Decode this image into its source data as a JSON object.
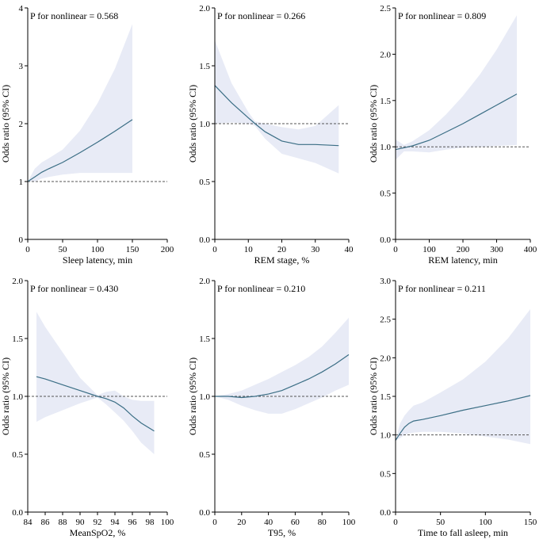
{
  "chart_data": [
    {
      "type": "line",
      "annotation": "P for nonlinear = 0.568",
      "xlabel": "Sleep latency, min",
      "ylabel": "Odds ratio (95% CI)",
      "xlim": [
        0,
        200
      ],
      "ylim": [
        0,
        4
      ],
      "xticks": [
        0,
        50,
        100,
        150,
        200
      ],
      "yticks": [
        0,
        1,
        2,
        3,
        4
      ],
      "ytick_labels": [
        "0",
        "1",
        "2",
        "3",
        "4"
      ],
      "reference": 1,
      "series": [
        {
          "name": "Odds ratio",
          "x": [
            0,
            10,
            20,
            30,
            50,
            75,
            100,
            125,
            150
          ],
          "y": [
            1.0,
            1.08,
            1.16,
            1.22,
            1.33,
            1.5,
            1.68,
            1.87,
            2.07
          ]
        },
        {
          "name": "95% CI upper",
          "x": [
            0,
            10,
            20,
            30,
            50,
            75,
            100,
            125,
            150
          ],
          "y": [
            1.0,
            1.22,
            1.33,
            1.4,
            1.55,
            1.88,
            2.35,
            2.95,
            3.72
          ]
        },
        {
          "name": "95% CI lower",
          "x": [
            0,
            10,
            20,
            30,
            50,
            75,
            100,
            125,
            150
          ],
          "y": [
            1.0,
            1.0,
            1.05,
            1.08,
            1.12,
            1.15,
            1.15,
            1.15,
            1.15
          ]
        }
      ]
    },
    {
      "type": "line",
      "annotation": "P for nonlinear = 0.266",
      "xlabel": "REM stage, %",
      "ylabel": "Odds ratio (95% CI)",
      "xlim": [
        0,
        40
      ],
      "ylim": [
        0,
        2
      ],
      "xticks": [
        0,
        10,
        20,
        30,
        40
      ],
      "yticks": [
        0,
        0.5,
        1,
        1.5,
        2
      ],
      "ytick_labels": [
        "0.0",
        "0.5",
        "1.0",
        "1.5",
        "2.0"
      ],
      "reference": 1,
      "series": [
        {
          "name": "Odds ratio",
          "x": [
            0,
            5,
            10,
            12,
            15,
            20,
            25,
            30,
            37
          ],
          "y": [
            1.33,
            1.18,
            1.05,
            1.0,
            0.93,
            0.85,
            0.82,
            0.82,
            0.81
          ]
        },
        {
          "name": "95% CI upper",
          "x": [
            0,
            5,
            10,
            12,
            15,
            20,
            25,
            30,
            37
          ],
          "y": [
            1.72,
            1.35,
            1.1,
            1.02,
            1.0,
            0.97,
            0.95,
            0.98,
            1.16
          ]
        },
        {
          "name": "95% CI lower",
          "x": [
            0,
            5,
            10,
            12,
            15,
            20,
            25,
            30,
            37
          ],
          "y": [
            1.0,
            1.01,
            1.0,
            0.98,
            0.87,
            0.74,
            0.7,
            0.66,
            0.57
          ]
        }
      ]
    },
    {
      "type": "line",
      "annotation": "P for nonlinear = 0.809",
      "xlabel": "REM latency, min",
      "ylabel": "Odds ratio (95% CI)",
      "xlim": [
        0,
        400
      ],
      "ylim": [
        0,
        2.5
      ],
      "xticks": [
        0,
        100,
        200,
        300,
        400
      ],
      "yticks": [
        0,
        0.5,
        1,
        1.5,
        2,
        2.5
      ],
      "ytick_labels": [
        "0.0",
        "0.5",
        "1.0",
        "1.5",
        "2.0",
        "2.5"
      ],
      "reference": 1,
      "series": [
        {
          "name": "Odds ratio",
          "x": [
            0,
            25,
            50,
            100,
            150,
            200,
            250,
            300,
            360
          ],
          "y": [
            0.97,
            0.99,
            1.01,
            1.07,
            1.16,
            1.25,
            1.35,
            1.45,
            1.57
          ]
        },
        {
          "name": "95% CI upper",
          "x": [
            0,
            25,
            50,
            100,
            150,
            200,
            250,
            300,
            360
          ],
          "y": [
            1.08,
            1.02,
            1.06,
            1.18,
            1.35,
            1.55,
            1.78,
            2.05,
            2.42
          ]
        },
        {
          "name": "95% CI lower",
          "x": [
            0,
            25,
            50,
            100,
            150,
            200,
            250,
            300,
            360
          ],
          "y": [
            0.86,
            0.95,
            0.95,
            0.94,
            0.97,
            0.99,
            1.0,
            1.01,
            1.02
          ]
        }
      ]
    },
    {
      "type": "line",
      "annotation": "P for nonlinear = 0.430",
      "xlabel": "MeanSpO2, %",
      "ylabel": "Odds ratio (95% CI)",
      "xlim": [
        84,
        100
      ],
      "ylim": [
        0,
        2
      ],
      "xticks": [
        84,
        86,
        88,
        90,
        92,
        94,
        96,
        98,
        100
      ],
      "yticks": [
        0,
        0.5,
        1,
        1.5,
        2
      ],
      "ytick_labels": [
        "0.0",
        "0.5",
        "1.0",
        "1.5",
        "2.0"
      ],
      "reference": 1,
      "series": [
        {
          "name": "Odds ratio",
          "x": [
            85,
            86,
            88,
            90,
            92,
            93,
            94,
            95,
            96,
            97,
            98.5
          ],
          "y": [
            1.17,
            1.15,
            1.1,
            1.05,
            1.0,
            0.98,
            0.95,
            0.9,
            0.83,
            0.77,
            0.7
          ]
        },
        {
          "name": "95% CI upper",
          "x": [
            85,
            86,
            88,
            90,
            92,
            93,
            94,
            95,
            96,
            97,
            98.5
          ],
          "y": [
            1.73,
            1.6,
            1.38,
            1.16,
            1.01,
            1.04,
            1.05,
            1.0,
            0.97,
            0.96,
            0.96
          ]
        },
        {
          "name": "95% CI lower",
          "x": [
            85,
            86,
            88,
            90,
            92,
            93,
            94,
            95,
            96,
            97,
            98.5
          ],
          "y": [
            0.78,
            0.82,
            0.88,
            0.94,
            0.99,
            0.93,
            0.86,
            0.79,
            0.7,
            0.6,
            0.5
          ]
        }
      ]
    },
    {
      "type": "line",
      "annotation": "P for nonlinear = 0.210",
      "xlabel": "T95, %",
      "ylabel": "Odds ratio (95% CI)",
      "xlim": [
        0,
        100
      ],
      "ylim": [
        0,
        2
      ],
      "xticks": [
        0,
        20,
        40,
        60,
        80,
        100
      ],
      "yticks": [
        0,
        0.5,
        1,
        1.5,
        2
      ],
      "ytick_labels": [
        "0.0",
        "0.5",
        "1.0",
        "1.5",
        "2.0"
      ],
      "reference": 1,
      "series": [
        {
          "name": "Odds ratio",
          "x": [
            0,
            10,
            20,
            30,
            40,
            50,
            60,
            70,
            80,
            90,
            100
          ],
          "y": [
            1.0,
            1.0,
            0.99,
            1.0,
            1.02,
            1.05,
            1.1,
            1.15,
            1.21,
            1.28,
            1.36
          ]
        },
        {
          "name": "95% CI upper",
          "x": [
            0,
            10,
            20,
            30,
            40,
            50,
            60,
            70,
            80,
            90,
            100
          ],
          "y": [
            1.0,
            1.02,
            1.05,
            1.1,
            1.15,
            1.21,
            1.27,
            1.34,
            1.43,
            1.55,
            1.68
          ]
        },
        {
          "name": "95% CI lower",
          "x": [
            0,
            10,
            20,
            30,
            40,
            50,
            60,
            70,
            80,
            90,
            100
          ],
          "y": [
            1.0,
            0.97,
            0.92,
            0.88,
            0.85,
            0.85,
            0.89,
            0.94,
            0.99,
            1.05,
            1.1
          ]
        }
      ]
    },
    {
      "type": "line",
      "annotation": "P for nonlinear = 0.211",
      "xlabel": "Time to fall asleep, min",
      "ylabel": "Odds ratio (95% CI)",
      "xlim": [
        0,
        150
      ],
      "ylim": [
        0,
        3
      ],
      "xticks": [
        0,
        50,
        100,
        150
      ],
      "yticks": [
        0,
        0.5,
        1,
        1.5,
        2,
        2.5,
        3
      ],
      "ytick_labels": [
        "0.0",
        "0.5",
        "1.0",
        "1.5",
        "2.0",
        "2.5",
        "3.0"
      ],
      "reference": 1,
      "series": [
        {
          "name": "Odds ratio",
          "x": [
            0,
            5,
            10,
            15,
            20,
            30,
            50,
            75,
            100,
            125,
            150
          ],
          "y": [
            0.93,
            1.02,
            1.1,
            1.15,
            1.18,
            1.2,
            1.25,
            1.32,
            1.38,
            1.44,
            1.51
          ]
        },
        {
          "name": "95% CI upper",
          "x": [
            0,
            5,
            10,
            15,
            20,
            30,
            50,
            75,
            100,
            125,
            150
          ],
          "y": [
            0.93,
            1.15,
            1.25,
            1.32,
            1.38,
            1.42,
            1.55,
            1.72,
            1.95,
            2.25,
            2.63
          ]
        },
        {
          "name": "95% CI lower",
          "x": [
            0,
            5,
            10,
            15,
            20,
            30,
            50,
            75,
            100,
            125,
            150
          ],
          "y": [
            0.93,
            0.96,
            1.0,
            1.02,
            1.03,
            1.04,
            1.04,
            1.02,
            0.98,
            0.94,
            0.88
          ]
        }
      ]
    }
  ]
}
